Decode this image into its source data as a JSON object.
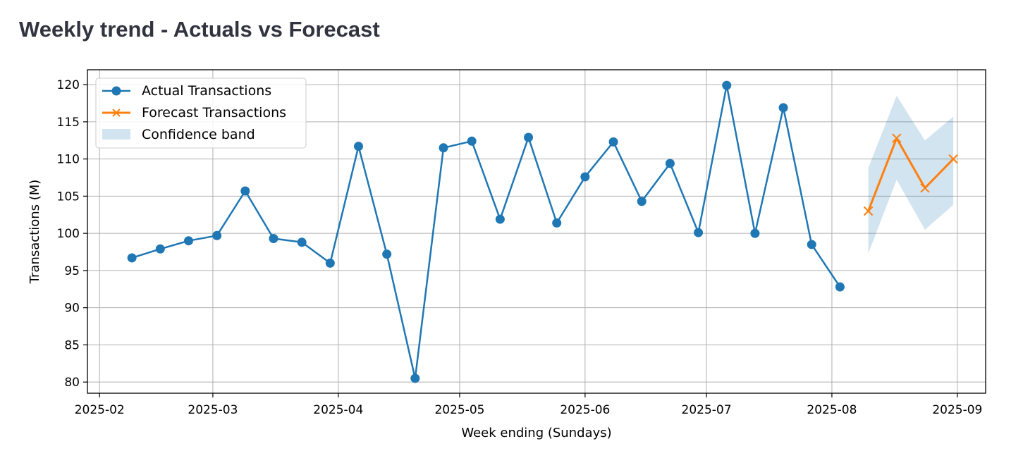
{
  "title": "Weekly trend - Actuals vs Forecast",
  "colors": {
    "actual": "#1f77b4",
    "forecast": "#ff7f0e",
    "band": "#1f77b4"
  },
  "chart_data": {
    "type": "line",
    "xlabel": "Week ending (Sundays)",
    "ylabel": "Transactions (M)",
    "xlim": [
      "2025-01-29",
      "2025-09-08"
    ],
    "ylim": [
      78.5,
      122
    ],
    "x_ticks": [
      "2025-02",
      "2025-03",
      "2025-04",
      "2025-05",
      "2025-06",
      "2025-07",
      "2025-08",
      "2025-09"
    ],
    "y_ticks": [
      80,
      85,
      90,
      95,
      100,
      105,
      110,
      115,
      120
    ],
    "grid": true,
    "legend_position": "top-left",
    "series": [
      {
        "name": "Actual Transactions",
        "marker": "circle",
        "x": [
          "2025-02-09",
          "2025-02-16",
          "2025-02-23",
          "2025-03-02",
          "2025-03-09",
          "2025-03-16",
          "2025-03-23",
          "2025-03-30",
          "2025-04-06",
          "2025-04-13",
          "2025-04-20",
          "2025-04-27",
          "2025-05-04",
          "2025-05-11",
          "2025-05-18",
          "2025-05-25",
          "2025-06-01",
          "2025-06-08",
          "2025-06-15",
          "2025-06-22",
          "2025-06-29",
          "2025-07-06",
          "2025-07-13",
          "2025-07-20",
          "2025-07-27",
          "2025-08-03"
        ],
        "y": [
          96.7,
          97.9,
          99.0,
          99.7,
          105.7,
          99.3,
          98.8,
          96.0,
          111.7,
          97.2,
          80.5,
          111.5,
          112.4,
          101.9,
          112.9,
          101.4,
          107.6,
          112.3,
          104.3,
          109.4,
          100.1,
          119.9,
          100.0,
          116.9,
          98.5,
          92.8
        ]
      },
      {
        "name": "Forecast Transactions",
        "marker": "x",
        "x": [
          "2025-08-10",
          "2025-08-17",
          "2025-08-24",
          "2025-08-31"
        ],
        "y": [
          103.0,
          112.8,
          106.1,
          110.0
        ]
      }
    ],
    "band": {
      "name": "Confidence band",
      "x": [
        "2025-08-10",
        "2025-08-17",
        "2025-08-24",
        "2025-08-31"
      ],
      "lower": [
        97.3,
        107.2,
        100.5,
        103.8
      ],
      "upper": [
        108.8,
        118.5,
        112.5,
        115.7
      ]
    }
  }
}
